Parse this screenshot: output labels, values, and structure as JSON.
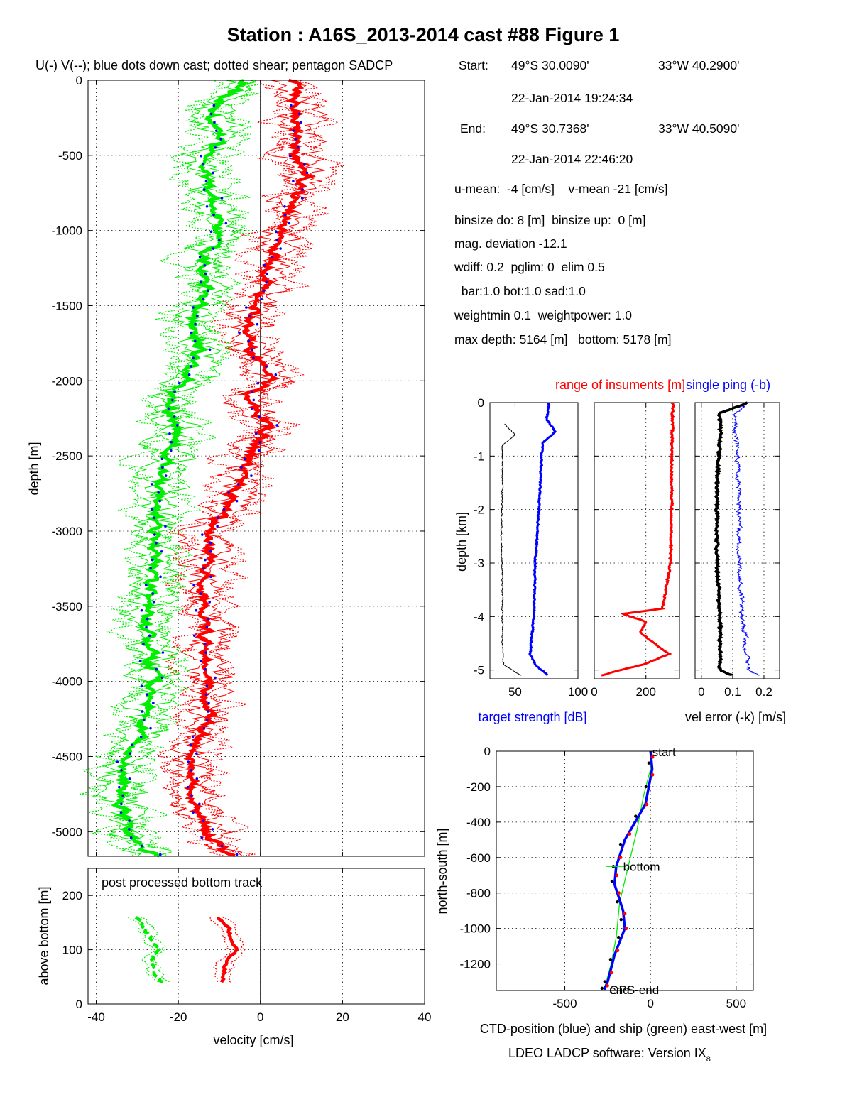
{
  "title": "Station : A16S_2013-2014 cast #88  Figure 1",
  "info": {
    "start_label": "Start:",
    "start_lat": "49°S 30.0090'",
    "start_lon": "33°W 40.2900'",
    "start_time": "22-Jan-2014 19:24:34",
    "end_label": "End:",
    "end_lat": "49°S 30.7368'",
    "end_lon": "33°W 40.5090'",
    "end_time": "22-Jan-2014 22:46:20",
    "means": "u-mean:  -4 [cm/s]    v-mean -21 [cm/s]",
    "binsize": "binsize do: 8 [m]  binsize up:  0 [m]",
    "magdev": "mag. deviation -12.1",
    "wdiff": "wdiff: 0.2  pglim: 0  elim 0.5",
    "weights": "  bar:1.0 bot:1.0 sad:1.0",
    "weightmin": "weightmin 0.1  weightpower: 1.0",
    "depths": "max depth: 5164 [m]   bottom: 5178 [m]"
  },
  "footer": "LDEO LADCP software: Version IX",
  "footer_sub": "8",
  "colors": {
    "u": "#ff0000",
    "v": "#00ee00",
    "downcast": "#0000ff",
    "black": "#000000"
  },
  "chart_data": [
    {
      "type": "line",
      "title": "U(-) V(--); blue dots down cast; dotted shear; pentagon SADCP",
      "xlabel": "",
      "ylabel": "depth [m]",
      "xlim": [
        -42,
        40
      ],
      "ylim": [
        -5164,
        0
      ],
      "xticks": [
        -40,
        -20,
        0,
        20,
        40
      ],
      "yticks": [
        0,
        -500,
        -1000,
        -1500,
        -2000,
        -2500,
        -3000,
        -3500,
        -4000,
        -4500,
        -5000
      ],
      "grid": true,
      "series": [
        {
          "name": "U",
          "depth": [
            0,
            -200,
            -400,
            -500,
            -600,
            -800,
            -1000,
            -1200,
            -1400,
            -1600,
            -1800,
            -2000,
            -2100,
            -2200,
            -2300,
            -2500,
            -2800,
            -3000,
            -3200,
            -3400,
            -3600,
            -3800,
            -4000,
            -4200,
            -4400,
            -4600,
            -4800,
            -5000,
            -5164
          ],
          "values": [
            8,
            9,
            10,
            8,
            12,
            8,
            6,
            3,
            1,
            -3,
            -2,
            3,
            -4,
            -2,
            2,
            -3,
            -7,
            -13,
            -12,
            -14,
            -13,
            -13,
            -13,
            -12,
            -15,
            -17,
            -16,
            -13,
            -8
          ]
        },
        {
          "name": "V",
          "depth": [
            0,
            -200,
            -400,
            -500,
            -600,
            -800,
            -1000,
            -1200,
            -1400,
            -1600,
            -1800,
            -2000,
            -2100,
            -2200,
            -2300,
            -2500,
            -2800,
            -3000,
            -3200,
            -3400,
            -3600,
            -3800,
            -4000,
            -4200,
            -4400,
            -4600,
            -4800,
            -5000,
            -5164
          ],
          "values": [
            -3,
            -12,
            -10,
            -14,
            -13,
            -12,
            -10,
            -14,
            -13,
            -17,
            -15,
            -18,
            -22,
            -22,
            -20,
            -23,
            -25,
            -26,
            -26,
            -27,
            -28,
            -27,
            -26,
            -28,
            -30,
            -34,
            -34,
            -32,
            -26
          ]
        }
      ]
    },
    {
      "type": "line",
      "title": "post processed bottom track",
      "xlabel": "velocity [cm/s]",
      "ylabel": "above bottom [m]",
      "xlim": [
        -42,
        40
      ],
      "ylim": [
        0,
        250
      ],
      "xticks": [
        -40,
        -20,
        0,
        20,
        40
      ],
      "yticks": [
        0,
        100,
        200
      ],
      "grid": true,
      "series": [
        {
          "name": "U",
          "height": [
            160,
            140,
            120,
            100,
            80,
            60,
            40
          ],
          "values": [
            -10,
            -8,
            -7,
            -6,
            -8,
            -9,
            -9
          ]
        },
        {
          "name": "V",
          "height": [
            160,
            140,
            120,
            100,
            80,
            60,
            40
          ],
          "values": [
            -30,
            -28,
            -27,
            -25,
            -27,
            -26,
            -24
          ]
        }
      ]
    },
    {
      "type": "line",
      "title": "",
      "xlabel": "target strength [dB]",
      "ylabel": "depth [km]",
      "xlim": [
        30,
        100
      ],
      "ylim": [
        -5.164,
        0
      ],
      "xticks": [
        50,
        100
      ],
      "yticks": [
        0,
        -1,
        -2,
        -3,
        -4,
        -5
      ],
      "grid": true,
      "series": [
        {
          "name": "target strength (blue)",
          "depth": [
            0,
            -0.3,
            -0.55,
            -0.75,
            -1,
            -2,
            -3,
            -4,
            -4.7,
            -4.9,
            -5.1
          ],
          "values": [
            77,
            75,
            82,
            72,
            71,
            69,
            66,
            65,
            62,
            66,
            76
          ]
        },
        {
          "name": "black",
          "depth": [
            -0.4,
            -0.6,
            -0.8,
            -1.5,
            -2.5,
            -3.5,
            -4.5,
            -4.9,
            -5.1
          ],
          "values": [
            42,
            50,
            40,
            40,
            39,
            40,
            40,
            41,
            55
          ]
        }
      ]
    },
    {
      "type": "line",
      "title": "range of insuments [m]",
      "xlabel": "",
      "ylabel": "",
      "xlim": [
        0,
        330
      ],
      "ylim": [
        -5.164,
        0
      ],
      "xticks": [
        0,
        200
      ],
      "yticks": [
        0,
        -1,
        -2,
        -3,
        -4,
        -5
      ],
      "grid": true,
      "series": [
        {
          "name": "range",
          "depth": [
            0,
            -1,
            -2,
            -3,
            -3.85,
            -3.95,
            -4.1,
            -4.3,
            -4.5,
            -4.7,
            -4.9,
            -5.0,
            -5.1
          ],
          "values": [
            305,
            300,
            300,
            295,
            265,
            110,
            200,
            180,
            230,
            290,
            190,
            100,
            30
          ]
        }
      ]
    },
    {
      "type": "line",
      "title": "single ping (-b)",
      "xlabel": "vel error (-k) [m/s]",
      "ylabel": "",
      "xlim": [
        -0.02,
        0.25
      ],
      "ylim": [
        -5.164,
        0
      ],
      "xticks": [
        0,
        0.1,
        0.2
      ],
      "yticks": [
        0,
        -1,
        -2,
        -3,
        -4,
        -5
      ],
      "grid": true,
      "series": [
        {
          "name": "vel error",
          "depth": [
            0,
            -0.2,
            -0.6,
            -1.5,
            -3,
            -4,
            -4.5,
            -5,
            -5.1
          ],
          "values": [
            0.15,
            0.06,
            0.06,
            0.05,
            0.05,
            0.06,
            0.06,
            0.06,
            0.1
          ]
        },
        {
          "name": "single ping",
          "depth": [
            0,
            -0.2,
            -0.6,
            -1.5,
            -3,
            -4,
            -4.5,
            -5,
            -5.1
          ],
          "values": [
            0.15,
            0.11,
            0.11,
            0.12,
            0.12,
            0.13,
            0.14,
            0.15,
            0.18
          ]
        }
      ]
    },
    {
      "type": "line",
      "title": "",
      "xlabel": "CTD-position (blue) and ship (green) east-west [m]",
      "ylabel": "north-south [m]",
      "xlim": [
        -900,
        600
      ],
      "ylim": [
        -1350,
        0
      ],
      "xticks": [
        -500,
        0,
        500
      ],
      "yticks": [
        0,
        -200,
        -400,
        -600,
        -800,
        -1000,
        -1200
      ],
      "grid": true,
      "annotations": [
        "start",
        "bottom",
        "end",
        "GPS-end"
      ],
      "series": [
        {
          "name": "CTD-position (blue)",
          "x": [
            0,
            10,
            -30,
            -150,
            -200,
            -210,
            -160,
            -150,
            -210,
            -250,
            -270
          ],
          "y": [
            0,
            -100,
            -300,
            -500,
            -650,
            -750,
            -900,
            -1000,
            -1150,
            -1300,
            -1345
          ]
        },
        {
          "name": "ship (green)",
          "x": [
            0,
            0,
            -40,
            -80,
            -130,
            -180,
            -200,
            -230,
            -270
          ],
          "y": [
            0,
            -100,
            -250,
            -450,
            -650,
            -850,
            -1050,
            -1200,
            -1345
          ]
        }
      ]
    }
  ]
}
